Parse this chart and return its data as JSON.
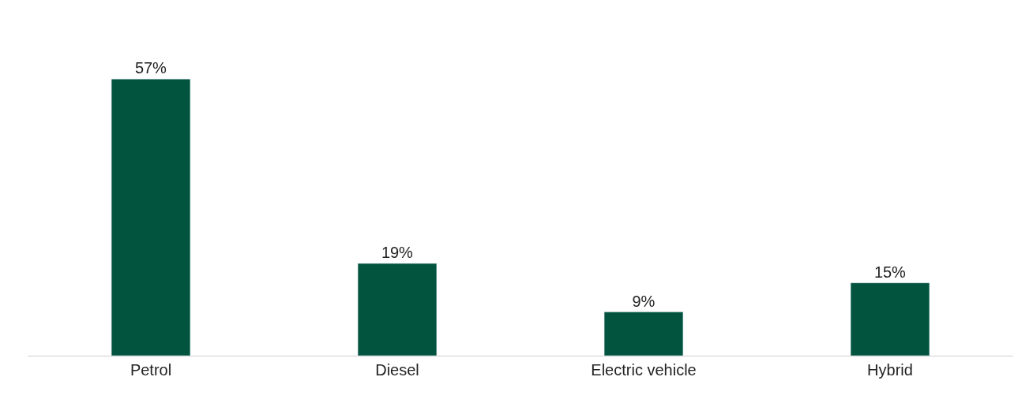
{
  "chart_data": {
    "type": "bar",
    "categories": [
      "Petrol",
      "Diesel",
      "Electric vehicle",
      "Hybrid"
    ],
    "values": [
      57,
      19,
      9,
      15
    ],
    "color": "#02543f",
    "value_labels": [
      "57%",
      "19%",
      "9%",
      "15%"
    ]
  }
}
